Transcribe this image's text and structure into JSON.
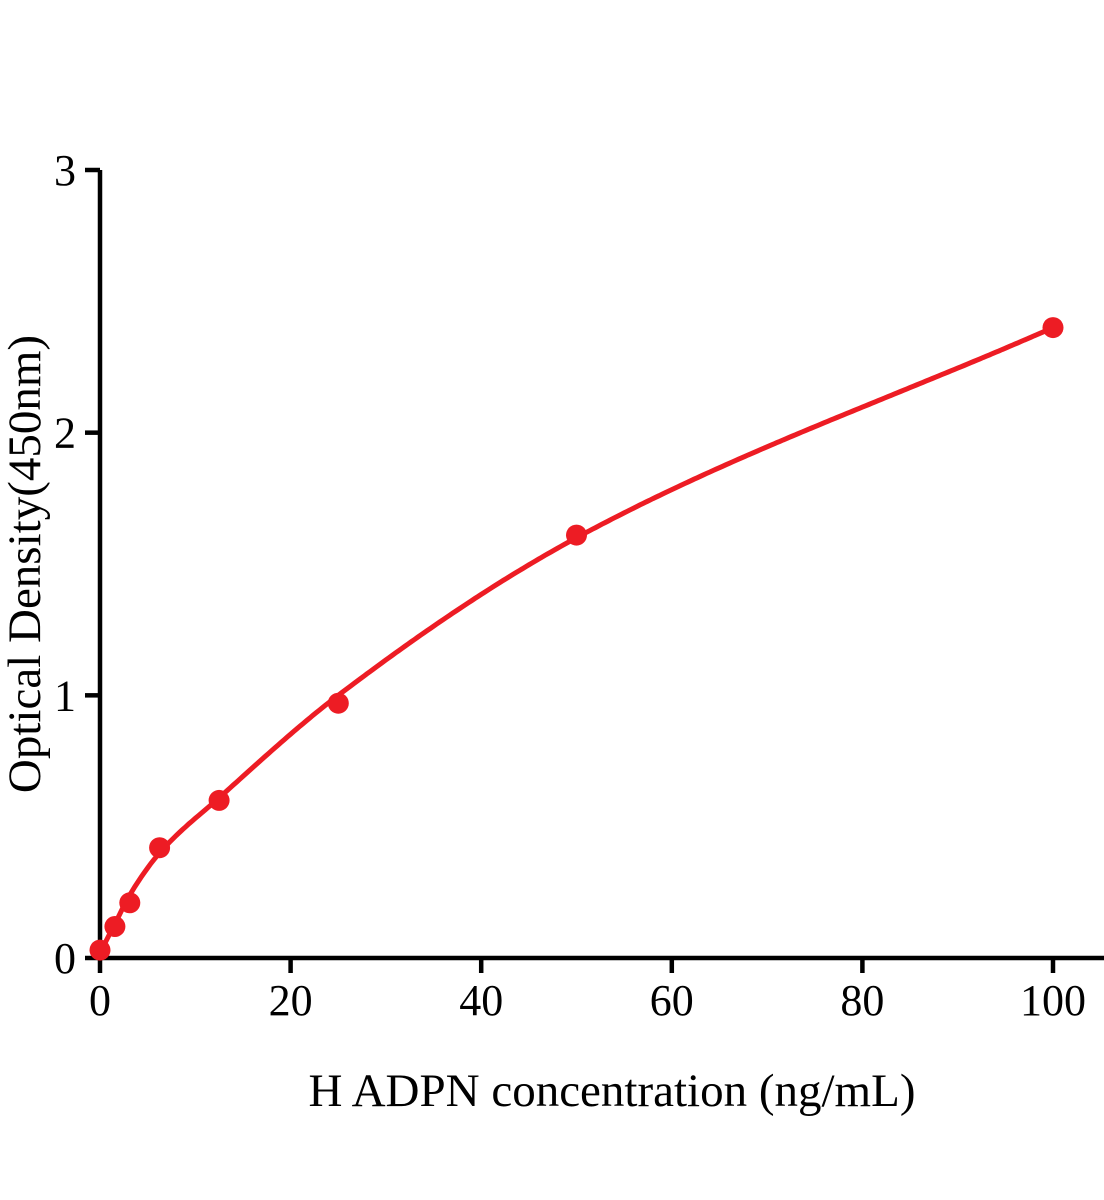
{
  "chart_data": {
    "type": "scatter",
    "title": "",
    "xlabel": "H ADPN concentration (ng/mL)",
    "ylabel": "Optical Density(450nm)",
    "x": [
      0,
      1.5625,
      3.125,
      6.25,
      12.5,
      25,
      50,
      100
    ],
    "y": [
      0.03,
      0.12,
      0.21,
      0.42,
      0.6,
      0.97,
      1.61,
      2.4
    ],
    "curve_anchors": [
      [
        0,
        0.02
      ],
      [
        1.5625,
        0.13
      ],
      [
        3.125,
        0.24
      ],
      [
        6.25,
        0.4
      ],
      [
        12.5,
        0.61
      ],
      [
        25,
        1.0
      ],
      [
        50,
        1.6
      ],
      [
        100,
        2.4
      ]
    ],
    "xticks": [
      0,
      20,
      40,
      60,
      80,
      100
    ],
    "yticks": [
      0,
      1,
      2,
      3
    ],
    "xlim": [
      0,
      105.5
    ],
    "ylim": [
      0,
      3
    ],
    "grid": false,
    "legend_position": "none",
    "marker_color": "#ED1C24",
    "line_color": "#ED1C24",
    "axis_color": "#000000",
    "background_color": "#FFFFFF"
  }
}
